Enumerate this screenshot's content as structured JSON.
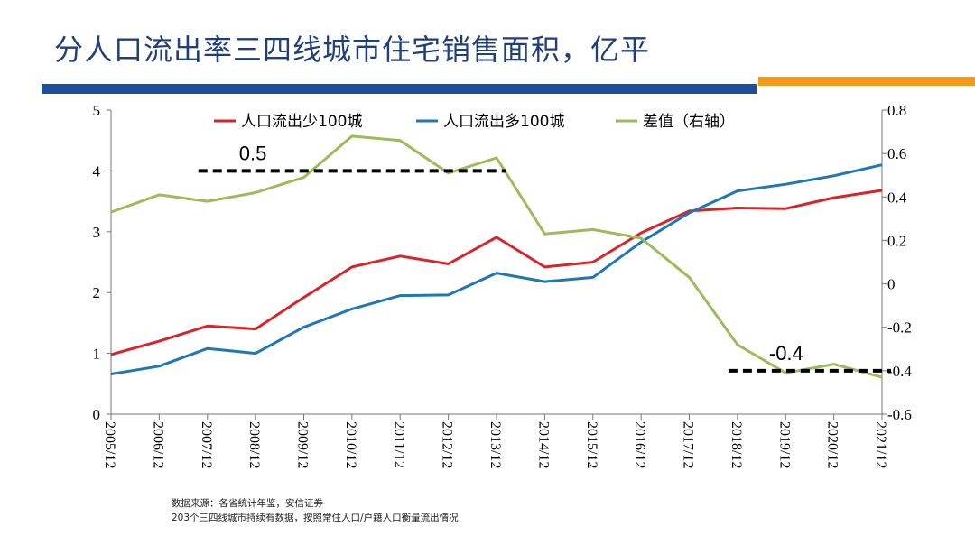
{
  "title": "分人口流出率三四线城市住宅销售面积，亿平",
  "colors": {
    "title": "#1f3f7a",
    "bar_blue": "#1f4e9c",
    "bar_orange": "#f49a1a",
    "series_red": "#d7262b",
    "series_blue": "#1f77b4",
    "series_green": "#9cbb59"
  },
  "source": {
    "line1": "数据来源：各省统计年鉴，安信证券",
    "line2": "203个三四线城市持续有数据，按照常住人口/户籍人口衡量流出情况"
  },
  "chart_data": {
    "type": "line",
    "categories": [
      "2005/12",
      "2006/12",
      "2007/12",
      "2008/12",
      "2009/12",
      "2010/12",
      "2011/12",
      "2012/12",
      "2013/12",
      "2014/12",
      "2015/12",
      "2016/12",
      "2017/12",
      "2018/12",
      "2019/12",
      "2020/12",
      "2021/12"
    ],
    "left_axis": {
      "min": 0,
      "max": 5,
      "ticks": [
        "0",
        "1",
        "2",
        "3",
        "4",
        "5"
      ]
    },
    "right_axis": {
      "min": -0.6,
      "max": 0.8,
      "ticks": [
        "-0.6",
        "-0.4",
        "-0.2",
        "0",
        "0.2",
        "0.4",
        "0.6",
        "0.8"
      ]
    },
    "series": [
      {
        "name": "人口流出少100城",
        "axis": "left",
        "color": "#d7262b",
        "values": [
          0.98,
          1.2,
          1.45,
          1.4,
          1.92,
          2.42,
          2.6,
          2.47,
          2.91,
          2.42,
          2.5,
          2.98,
          3.34,
          3.39,
          3.38,
          3.56,
          3.68
        ]
      },
      {
        "name": "人口流出多100城",
        "axis": "left",
        "color": "#1f77b4",
        "values": [
          0.66,
          0.79,
          1.08,
          1.0,
          1.43,
          1.73,
          1.95,
          1.96,
          2.32,
          2.18,
          2.25,
          2.83,
          3.31,
          3.67,
          3.78,
          3.92,
          4.1
        ]
      },
      {
        "name": "差值（右轴）",
        "axis": "right",
        "color": "#9cbb59",
        "values": [
          0.33,
          0.41,
          0.38,
          0.42,
          0.49,
          0.68,
          0.66,
          0.51,
          0.58,
          0.23,
          0.25,
          0.21,
          0.03,
          -0.28,
          -0.41,
          -0.37,
          -0.43
        ]
      }
    ],
    "annotations": [
      {
        "text": "0.5",
        "axis": "right",
        "value": 0.52,
        "from": "2007/12",
        "to": "2013/12"
      },
      {
        "text": "-0.4",
        "axis": "right",
        "value": -0.4,
        "from": "2018/12",
        "to": "2021/12"
      }
    ],
    "legend_position": "top"
  }
}
